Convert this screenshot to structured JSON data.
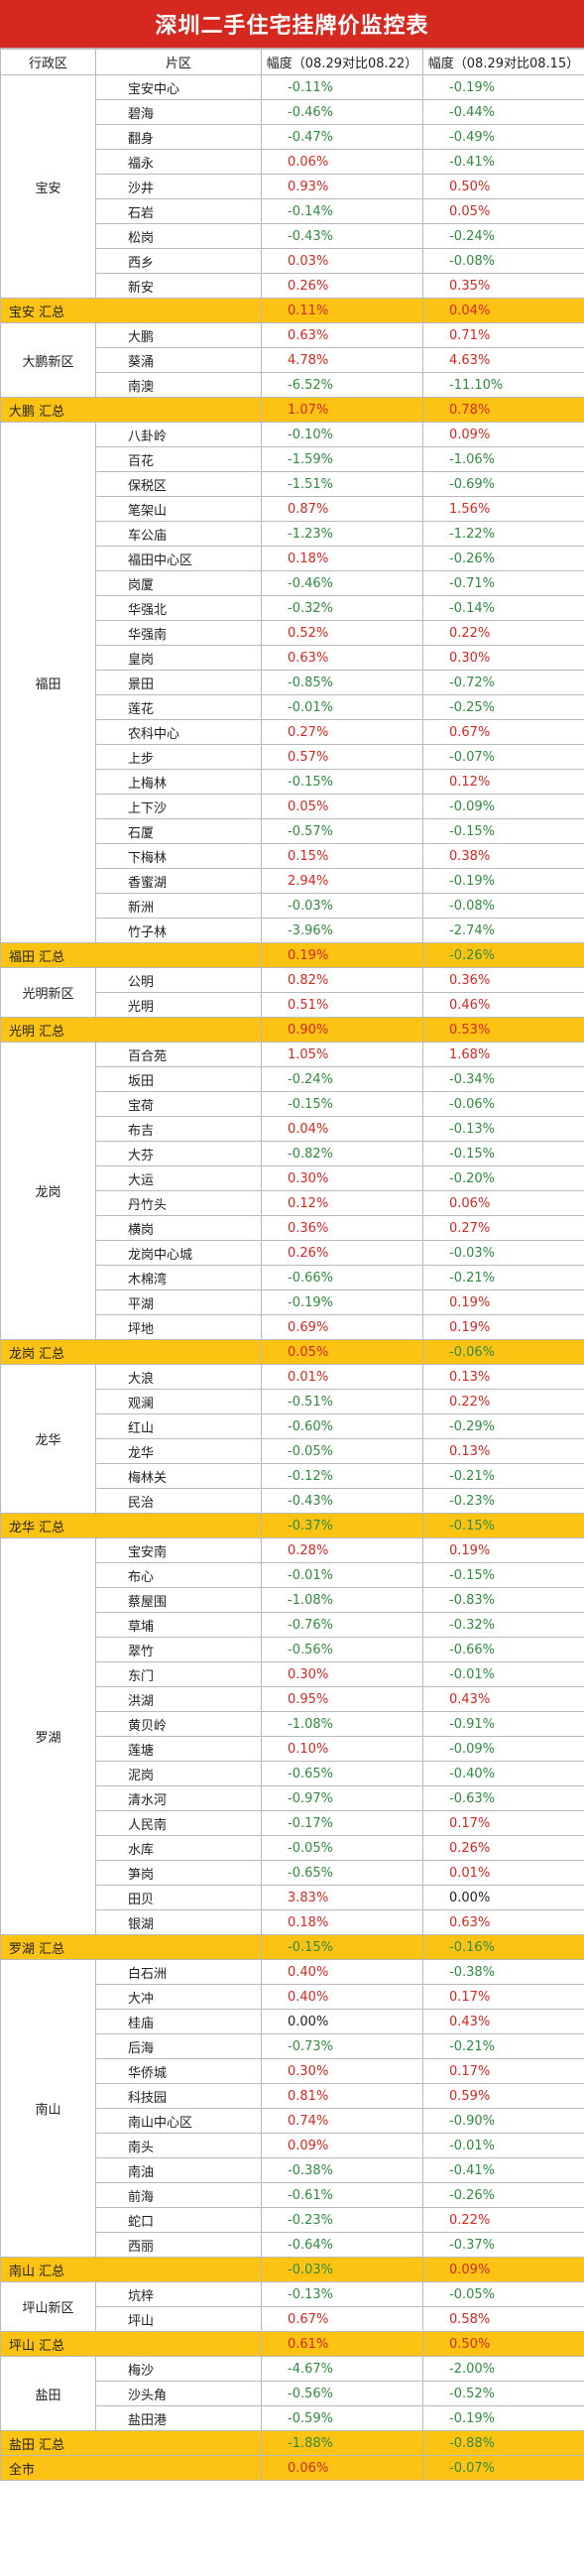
{
  "title": "深圳二手住宅挂牌价监控表",
  "headers": [
    "行政区",
    "片区",
    "幅度（08.29对比08.22）",
    "幅度（08.29对比08.15）"
  ],
  "groups": [
    {
      "name": "宝安",
      "summary": {
        "label": "宝安 汇总",
        "w": "0.11%",
        "m": "0.04%"
      },
      "rows": [
        [
          "宝安中心",
          "-0.11%",
          "-0.19%"
        ],
        [
          "碧海",
          "-0.46%",
          "-0.44%"
        ],
        [
          "翻身",
          "-0.47%",
          "-0.49%"
        ],
        [
          "福永",
          "0.06%",
          "-0.41%"
        ],
        [
          "沙井",
          "0.93%",
          "0.50%"
        ],
        [
          "石岩",
          "-0.14%",
          "0.05%"
        ],
        [
          "松岗",
          "-0.43%",
          "-0.24%"
        ],
        [
          "西乡",
          "0.03%",
          "-0.08%"
        ],
        [
          "新安",
          "0.26%",
          "0.35%"
        ]
      ]
    },
    {
      "name": "大鹏新区",
      "summary": {
        "label": "大鹏 汇总",
        "w": "1.07%",
        "m": "0.78%"
      },
      "rows": [
        [
          "大鹏",
          "0.63%",
          "0.71%"
        ],
        [
          "葵涌",
          "4.78%",
          "4.63%"
        ],
        [
          "南澳",
          "-6.52%",
          "-11.10%"
        ]
      ]
    },
    {
      "name": "福田",
      "summary": {
        "label": "福田 汇总",
        "w": "0.19%",
        "m": "-0.26%"
      },
      "rows": [
        [
          "八卦岭",
          "-0.10%",
          "0.09%"
        ],
        [
          "百花",
          "-1.59%",
          "-1.06%"
        ],
        [
          "保税区",
          "-1.51%",
          "-0.69%"
        ],
        [
          "笔架山",
          "0.87%",
          "1.56%"
        ],
        [
          "车公庙",
          "-1.23%",
          "-1.22%"
        ],
        [
          "福田中心区",
          "0.18%",
          "-0.26%"
        ],
        [
          "岗厦",
          "-0.46%",
          "-0.71%"
        ],
        [
          "华强北",
          "-0.32%",
          "-0.14%"
        ],
        [
          "华强南",
          "0.52%",
          "0.22%"
        ],
        [
          "皇岗",
          "0.63%",
          "0.30%"
        ],
        [
          "景田",
          "-0.85%",
          "-0.72%"
        ],
        [
          "莲花",
          "-0.01%",
          "-0.25%"
        ],
        [
          "农科中心",
          "0.27%",
          "0.67%"
        ],
        [
          "上步",
          "0.57%",
          "-0.07%"
        ],
        [
          "上梅林",
          "-0.15%",
          "0.12%"
        ],
        [
          "上下沙",
          "0.05%",
          "-0.09%"
        ],
        [
          "石厦",
          "-0.57%",
          "-0.15%"
        ],
        [
          "下梅林",
          "0.15%",
          "0.38%"
        ],
        [
          "香蜜湖",
          "2.94%",
          "-0.19%"
        ],
        [
          "新洲",
          "-0.03%",
          "-0.08%"
        ],
        [
          "竹子林",
          "-3.96%",
          "-2.74%"
        ]
      ]
    },
    {
      "name": "光明新区",
      "summary": {
        "label": "光明 汇总",
        "w": "0.90%",
        "m": "0.53%"
      },
      "rows": [
        [
          "公明",
          "0.82%",
          "0.36%"
        ],
        [
          "光明",
          "0.51%",
          "0.46%"
        ]
      ]
    },
    {
      "name": "龙岗",
      "summary": {
        "label": "龙岗 汇总",
        "w": "0.05%",
        "m": "-0.06%"
      },
      "rows": [
        [
          "百合苑",
          "1.05%",
          "1.68%"
        ],
        [
          "坂田",
          "-0.24%",
          "-0.34%"
        ],
        [
          "宝荷",
          "-0.15%",
          "-0.06%"
        ],
        [
          "布吉",
          "0.04%",
          "-0.13%"
        ],
        [
          "大芬",
          "-0.82%",
          "-0.15%"
        ],
        [
          "大运",
          "0.30%",
          "-0.20%"
        ],
        [
          "丹竹头",
          "0.12%",
          "0.06%"
        ],
        [
          "横岗",
          "0.36%",
          "0.27%"
        ],
        [
          "龙岗中心城",
          "0.26%",
          "-0.03%"
        ],
        [
          "木棉湾",
          "-0.66%",
          "-0.21%"
        ],
        [
          "平湖",
          "-0.19%",
          "0.19%"
        ],
        [
          "坪地",
          "0.69%",
          "0.19%"
        ]
      ]
    },
    {
      "name": "龙华",
      "summary": {
        "label": "龙华 汇总",
        "w": "-0.37%",
        "m": "-0.15%"
      },
      "rows": [
        [
          "大浪",
          "0.01%",
          "0.13%"
        ],
        [
          "观澜",
          "-0.51%",
          "0.22%"
        ],
        [
          "红山",
          "-0.60%",
          "-0.29%"
        ],
        [
          "龙华",
          "-0.05%",
          "0.13%"
        ],
        [
          "梅林关",
          "-0.12%",
          "-0.21%"
        ],
        [
          "民治",
          "-0.43%",
          "-0.23%"
        ]
      ]
    },
    {
      "name": "罗湖",
      "summary": {
        "label": "罗湖 汇总",
        "w": "-0.15%",
        "m": "-0.16%"
      },
      "rows": [
        [
          "宝安南",
          "0.28%",
          "0.19%"
        ],
        [
          "布心",
          "-0.01%",
          "-0.15%"
        ],
        [
          "蔡屋围",
          "-1.08%",
          "-0.83%"
        ],
        [
          "草埔",
          "-0.76%",
          "-0.32%"
        ],
        [
          "翠竹",
          "-0.56%",
          "-0.66%"
        ],
        [
          "东门",
          "0.30%",
          "-0.01%"
        ],
        [
          "洪湖",
          "0.95%",
          "0.43%"
        ],
        [
          "黄贝岭",
          "-1.08%",
          "-0.91%"
        ],
        [
          "莲塘",
          "0.10%",
          "-0.09%"
        ],
        [
          "泥岗",
          "-0.65%",
          "-0.40%"
        ],
        [
          "清水河",
          "-0.97%",
          "-0.63%"
        ],
        [
          "人民南",
          "-0.17%",
          "0.17%"
        ],
        [
          "水库",
          "-0.05%",
          "0.26%"
        ],
        [
          "笋岗",
          "-0.65%",
          "0.01%"
        ],
        [
          "田贝",
          "3.83%",
          "0.00%"
        ],
        [
          "银湖",
          "0.18%",
          "0.63%"
        ]
      ]
    },
    {
      "name": "南山",
      "summary": {
        "label": "南山 汇总",
        "w": "-0.03%",
        "m": "0.09%"
      },
      "rows": [
        [
          "白石洲",
          "0.40%",
          "-0.38%"
        ],
        [
          "大冲",
          "0.40%",
          "0.17%"
        ],
        [
          "桂庙",
          "0.00%",
          "0.43%"
        ],
        [
          "后海",
          "-0.73%",
          "-0.21%"
        ],
        [
          "华侨城",
          "0.30%",
          "0.17%"
        ],
        [
          "科技园",
          "0.81%",
          "0.59%"
        ],
        [
          "南山中心区",
          "0.74%",
          "-0.90%"
        ],
        [
          "南头",
          "0.09%",
          "-0.01%"
        ],
        [
          "南油",
          "-0.38%",
          "-0.41%"
        ],
        [
          "前海",
          "-0.61%",
          "-0.26%"
        ],
        [
          "蛇口",
          "-0.23%",
          "0.22%"
        ],
        [
          "西丽",
          "-0.64%",
          "-0.37%"
        ]
      ]
    },
    {
      "name": "坪山新区",
      "summary": {
        "label": "坪山 汇总",
        "w": "0.61%",
        "m": "0.50%"
      },
      "rows": [
        [
          "坑梓",
          "-0.13%",
          "-0.05%"
        ],
        [
          "坪山",
          "0.67%",
          "0.58%"
        ]
      ]
    },
    {
      "name": "盐田",
      "summary": {
        "label": "盐田 汇总",
        "w": "-1.88%",
        "m": "-0.88%"
      },
      "rows": [
        [
          "梅沙",
          "-4.67%",
          "-2.00%"
        ],
        [
          "沙头角",
          "-0.56%",
          "-0.52%"
        ],
        [
          "盐田港",
          "-0.59%",
          "-0.19%"
        ]
      ]
    }
  ],
  "total": {
    "label": "全市",
    "w": "0.06%",
    "m": "-0.07%"
  }
}
